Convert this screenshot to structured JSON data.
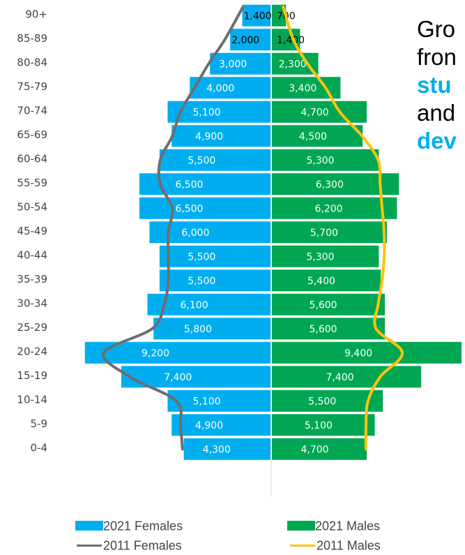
{
  "chart_data": {
    "type": "bar",
    "orientation": "horizontal-pyramid",
    "categories": [
      "90+",
      "85-89",
      "80-84",
      "75-79",
      "70-74",
      "65-69",
      "60-64",
      "55-59",
      "50-54",
      "45-49",
      "40-44",
      "35-39",
      "30-34",
      "25-29",
      "20-24",
      "15-19",
      "10-14",
      "5-9",
      "0-4"
    ],
    "series": [
      {
        "name": "2021 Females",
        "kind": "bar",
        "side": "left",
        "color": "#00AEEF",
        "values": [
          1400,
          2000,
          3000,
          4000,
          5100,
          4900,
          5500,
          6500,
          6500,
          6000,
          5500,
          5500,
          6100,
          5800,
          9200,
          7400,
          5100,
          4900,
          4300
        ],
        "labels": [
          "1,400",
          "2,000",
          "3,000",
          "4,000",
          "5,100",
          "4,900",
          "5,500",
          "6,500",
          "6,500",
          "6,000",
          "5,500",
          "5,500",
          "6,100",
          "5,800",
          "9,200",
          "7,400",
          "5,100",
          "4,900",
          "4,300"
        ]
      },
      {
        "name": "2021 Males",
        "kind": "bar",
        "side": "right",
        "color": "#00A651",
        "values": [
          700,
          1400,
          2300,
          3400,
          4700,
          4500,
          5300,
          6300,
          6200,
          5700,
          5300,
          5400,
          5600,
          5600,
          9400,
          7400,
          5500,
          5100,
          4700
        ],
        "labels": [
          "700",
          "1,400",
          "2,300",
          "3,400",
          "4,700",
          "4,500",
          "5,300",
          "6,300",
          "6,200",
          "5,700",
          "5,300",
          "5,400",
          "5,600",
          "5,600",
          "9,400",
          "7,400",
          "5,500",
          "5,100",
          "4,700"
        ]
      },
      {
        "name": "2011 Females",
        "kind": "line",
        "side": "left",
        "color": "#6D6E71",
        "values": [
          1400,
          2300,
          3100,
          3800,
          4500,
          4900,
          5500,
          5500,
          4900,
          5100,
          5100,
          5100,
          5300,
          5900,
          8300,
          7000,
          4700,
          4500,
          4400
        ]
      },
      {
        "name": "2011 Males",
        "kind": "line",
        "side": "right",
        "color": "#FFC20E",
        "values": [
          600,
          1100,
          1800,
          2700,
          3400,
          4500,
          5300,
          5400,
          5500,
          5600,
          5600,
          5500,
          5300,
          5200,
          6500,
          5400,
          4800,
          4700,
          4700
        ]
      }
    ],
    "xlim": [
      -9500,
      9500
    ],
    "label_overrides_dark": [
      "90+",
      "85-89"
    ]
  },
  "side_text": {
    "line1": "Gro",
    "line2": "fron",
    "line3": "stu",
    "line4": "and",
    "line5": "dev"
  },
  "legend": {
    "f2021": "2021 Females",
    "m2021": "2021 Males",
    "f2011": "2011 Females",
    "m2011": "2011 Males"
  }
}
